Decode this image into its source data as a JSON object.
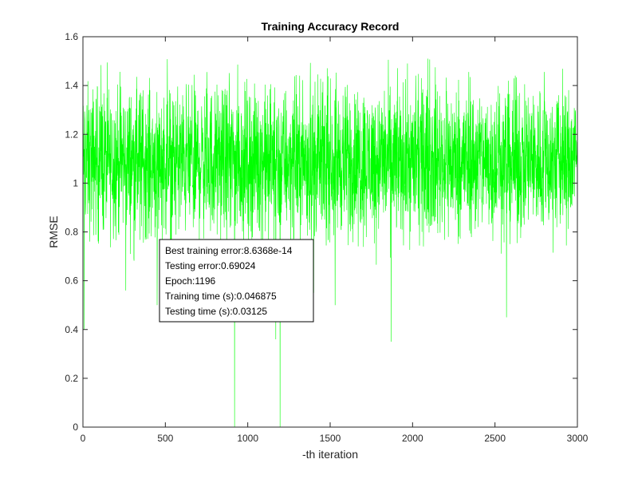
{
  "chart_data": {
    "type": "line",
    "title": "Training Accuracy Record",
    "xlabel": "-th iteration",
    "ylabel": "RMSE",
    "xlim": [
      0,
      3000
    ],
    "ylim": [
      0,
      1.6
    ],
    "xticks": [
      0,
      500,
      1000,
      1500,
      2000,
      2500,
      3000
    ],
    "xtick_labels": [
      "0",
      "500",
      "1000",
      "1500",
      "2000",
      "2500",
      "3000"
    ],
    "yticks": [
      0,
      0.2,
      0.4,
      0.6,
      0.8,
      1,
      1.2,
      1.4,
      1.6
    ],
    "ytick_labels": [
      "0",
      "0.2",
      "0.4",
      "0.6",
      "0.8",
      "1",
      "1.2",
      "1.4",
      "1.6"
    ],
    "grid": false,
    "line_color": "#00ff00",
    "series": [
      {
        "points_summary": "noisy RMSE values fluctuating between about 0.65 and 1.53 over 3000 iterations",
        "band": [
          0.65,
          1.53
        ],
        "x_range": [
          0,
          3000
        ],
        "notable_dips": [
          {
            "x": 8,
            "y": 0.4
          },
          {
            "x": 260,
            "y": 0.56
          },
          {
            "x": 450,
            "y": 0.5
          },
          {
            "x": 920,
            "y": 0.0
          },
          {
            "x": 1170,
            "y": 0.36
          },
          {
            "x": 1196,
            "y": 0.0
          },
          {
            "x": 1400,
            "y": 0.55
          },
          {
            "x": 1530,
            "y": 0.5
          },
          {
            "x": 1870,
            "y": 0.35
          },
          {
            "x": 2570,
            "y": 0.45
          }
        ]
      }
    ],
    "annotation": {
      "lines": [
        "Best training error:8.6368e-14",
        "Testing error:0.69024",
        "Epoch:1196",
        "Training time (s):0.046875",
        "Testing time (s):0.03125"
      ]
    }
  }
}
